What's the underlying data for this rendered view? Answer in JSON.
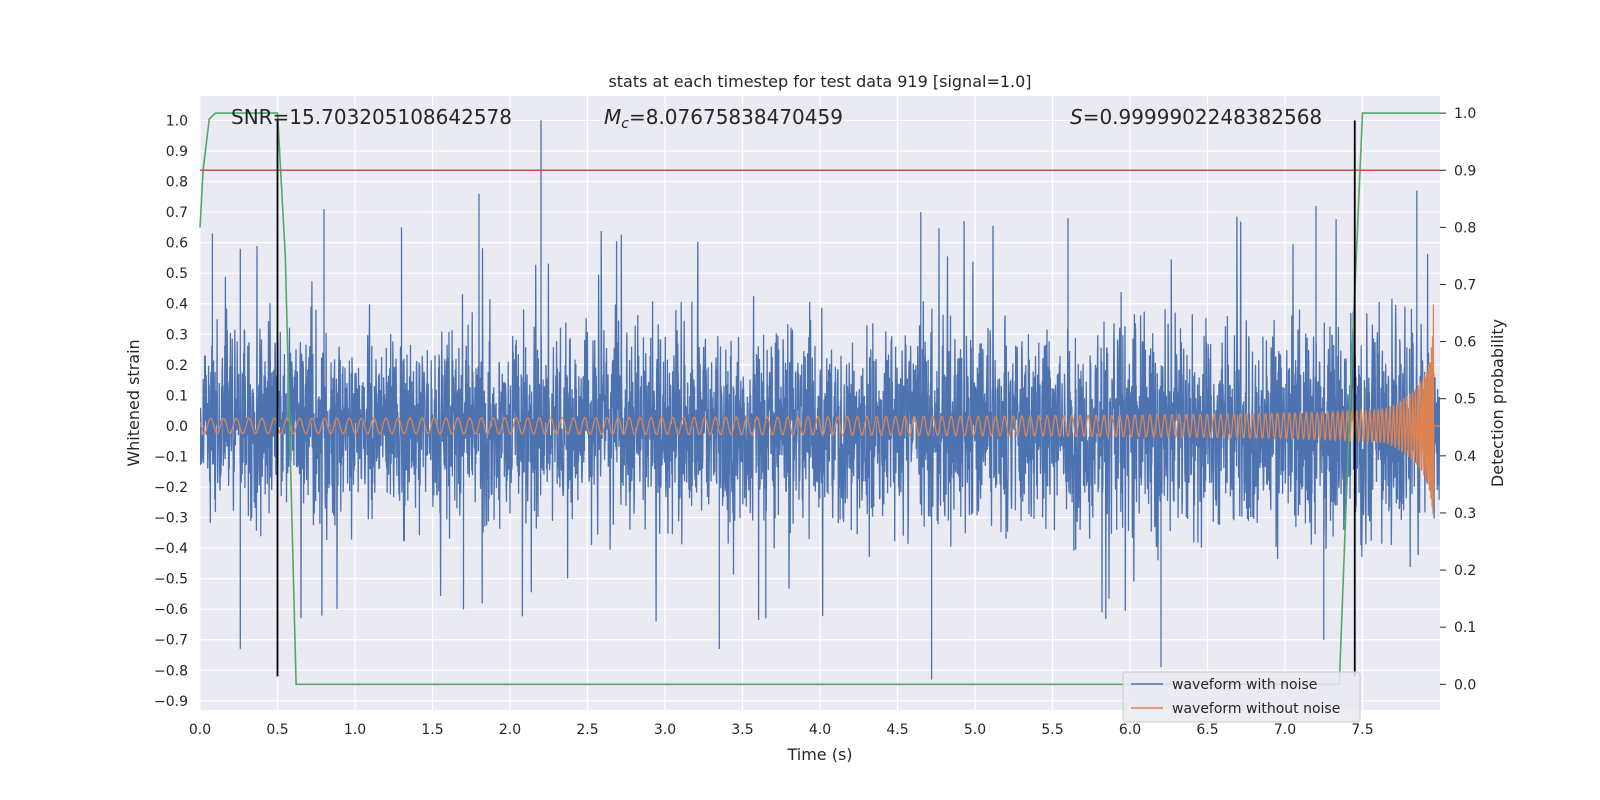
{
  "chart_data": {
    "type": "line",
    "title": "stats at each timestep for test data 919 [signal=1.0]",
    "xlabel": "Time (s)",
    "ylabel": "Whitened strain",
    "y2label": "Detection probability",
    "xlim": [
      0.0,
      8.0
    ],
    "ylim": [
      -0.93,
      1.08
    ],
    "y2lim": [
      -0.045,
      1.03
    ],
    "x_ticks": [
      0.0,
      0.5,
      1.0,
      1.5,
      2.0,
      2.5,
      3.0,
      3.5,
      4.0,
      4.5,
      5.0,
      5.5,
      6.0,
      6.5,
      7.0,
      7.5
    ],
    "x_tick_labels": [
      "0.0",
      "0.5",
      "1.0",
      "1.5",
      "2.0",
      "2.5",
      "3.0",
      "3.5",
      "4.0",
      "4.5",
      "5.0",
      "5.5",
      "6.0",
      "6.5",
      "7.0",
      "7.5"
    ],
    "y_ticks": [
      1.0,
      0.9,
      0.8,
      0.7,
      0.6,
      0.5,
      0.4,
      0.3,
      0.2,
      0.1,
      0.0,
      -0.1,
      -0.2,
      -0.3,
      -0.4,
      -0.5,
      -0.6,
      -0.7,
      -0.8,
      -0.9
    ],
    "y_tick_labels": [
      "1.0",
      "0.9",
      "0.8",
      "0.7",
      "0.6",
      "0.5",
      "0.4",
      "0.3",
      "0.2",
      "0.1",
      "0.0",
      "−0.1",
      "−0.2",
      "−0.3",
      "−0.4",
      "−0.5",
      "−0.6",
      "−0.7",
      "−0.8",
      "−0.9"
    ],
    "y2_ticks": [
      1.0,
      0.9,
      0.8,
      0.7,
      0.6,
      0.5,
      0.4,
      0.3,
      0.2,
      0.1,
      0.0
    ],
    "y2_tick_labels": [
      "1.0",
      "0.9",
      "0.8",
      "0.7",
      "0.6",
      "0.5",
      "0.4",
      "0.3",
      "0.2",
      "0.1",
      "0.0"
    ],
    "grid": true,
    "legend_position": "bottom-right",
    "annotations": {
      "snr": "SNR=15.703205108642578",
      "mc_symbol": "M",
      "mc_sub": "c",
      "mc_value": "=8.07675838470459",
      "s_symbol": "S",
      "s_value": "=0.9999902248382568"
    },
    "series": [
      {
        "name": "waveform with noise",
        "color": "#4c72b0",
        "kind": "noise-envelope",
        "envelope_x": [
          0.0,
          1.0,
          2.0,
          3.0,
          4.0,
          5.0,
          6.0,
          7.0,
          7.5,
          7.9,
          8.0
        ],
        "envelope_amplitude": [
          0.42,
          0.43,
          0.43,
          0.44,
          0.44,
          0.45,
          0.46,
          0.48,
          0.5,
          0.55,
          0.3
        ],
        "peaks": [
          {
            "x": 0.08,
            "y": 0.63
          },
          {
            "x": 0.26,
            "y": 0.58
          },
          {
            "x": 0.8,
            "y": 0.71
          },
          {
            "x": 1.3,
            "y": 0.65
          },
          {
            "x": 1.8,
            "y": 0.76
          },
          {
            "x": 2.2,
            "y": 1.0
          },
          {
            "x": 4.65,
            "y": 0.7
          },
          {
            "x": 5.6,
            "y": 0.68
          },
          {
            "x": 7.2,
            "y": 0.72
          },
          {
            "x": 7.85,
            "y": 0.77
          },
          {
            "x": 0.26,
            "y": -0.73
          },
          {
            "x": 1.7,
            "y": -0.6
          },
          {
            "x": 3.35,
            "y": -0.73
          },
          {
            "x": 3.65,
            "y": -0.63
          },
          {
            "x": 4.72,
            "y": -0.83
          },
          {
            "x": 6.2,
            "y": -0.79
          },
          {
            "x": 7.25,
            "y": -0.7
          }
        ]
      },
      {
        "name": "waveform without noise",
        "color": "#dd8452",
        "kind": "chirp",
        "t_coalescence": 7.96,
        "amplitude_start": 0.025,
        "amplitude_peak": 0.6,
        "cycles_start_per_s": 12
      },
      {
        "name": "",
        "color": "#55a868",
        "axis": "right",
        "kind": "probability",
        "x": [
          0.0,
          0.02,
          0.06,
          0.1,
          0.5,
          0.55,
          0.62,
          7.35,
          7.42,
          7.5,
          8.0
        ],
        "y": [
          0.8,
          0.9,
          0.99,
          1.0,
          1.0,
          0.75,
          0.0,
          0.0,
          0.5,
          1.0,
          1.0
        ]
      }
    ],
    "threshold": {
      "axis": "right",
      "value": 0.9,
      "color": "#c44e52"
    },
    "event_markers": [
      {
        "x": 0.5,
        "y_from": -0.82,
        "y_to": 1.0,
        "color": "#000000"
      },
      {
        "x": 7.45,
        "y_from": -0.82,
        "y_to": 1.0,
        "color": "#000000"
      }
    ],
    "colors": {
      "axes_bg": "#eaeaf2",
      "grid": "#ffffff",
      "text": "#262626"
    }
  }
}
